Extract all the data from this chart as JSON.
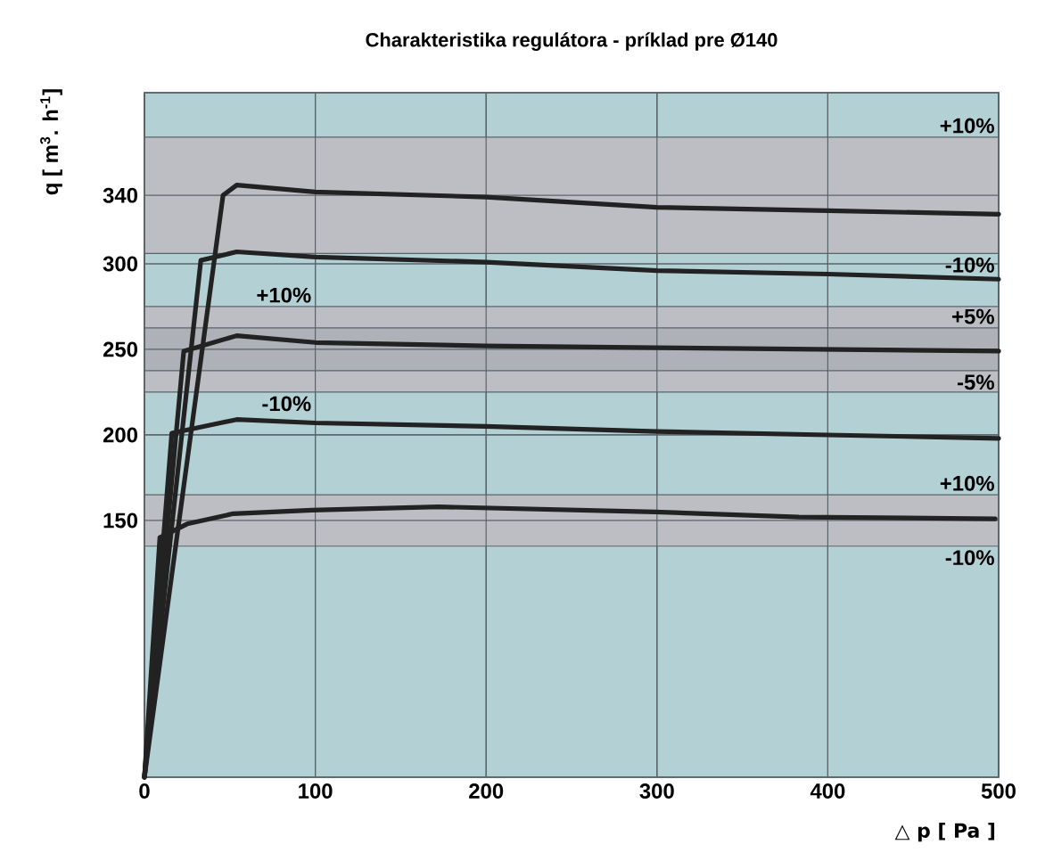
{
  "chart_data": {
    "type": "line",
    "title": "Charakteristika regulátora - príklad pre Ø140",
    "xlabel": "△ p [ Pa ]",
    "ylabel": "q [ m$^{3}$. h$^{-1}$]",
    "xlim": [
      0,
      500
    ],
    "ylim": [
      0,
      400
    ],
    "xticks": [
      0,
      100,
      200,
      300,
      400,
      500
    ],
    "yticks": [
      150,
      200,
      250,
      300,
      340
    ],
    "grid": true,
    "marker": "none",
    "line_style": "solid",
    "series": [
      {
        "color": "#222222",
        "x": [
          0,
          46,
          54,
          100,
          200,
          300,
          400,
          500
        ],
        "values": [
          0,
          340,
          346,
          342,
          339,
          333,
          331,
          329
        ]
      },
      {
        "color": "#222222",
        "x": [
          0,
          33,
          54,
          100,
          200,
          300,
          400,
          500
        ],
        "values": [
          0,
          302,
          307,
          304,
          301,
          296,
          294,
          291
        ]
      },
      {
        "color": "#222222",
        "x": [
          0,
          23,
          54,
          100,
          200,
          300,
          400,
          500
        ],
        "values": [
          0,
          249,
          258,
          254,
          252,
          251,
          250,
          249
        ]
      },
      {
        "color": "#222222",
        "x": [
          0,
          16,
          54,
          100,
          200,
          300,
          400,
          500
        ],
        "values": [
          0,
          201,
          209,
          207,
          205,
          202,
          200,
          198
        ]
      },
      {
        "color": "#222222",
        "x": [
          0,
          9,
          25,
          52,
          98,
          172,
          299,
          383,
          498
        ],
        "values": [
          0,
          140,
          148,
          154,
          156,
          158,
          155,
          152,
          151
        ]
      }
    ],
    "bands": [
      {
        "axis": "y",
        "from": 306,
        "to": 374,
        "color": "#bcbec4"
      },
      {
        "axis": "y",
        "from": 225,
        "to": 275,
        "color": "#bcbec4"
      },
      {
        "axis": "y",
        "from": 237.5,
        "to": 262.5,
        "color": "#aeb1b8"
      },
      {
        "axis": "y",
        "from": 135,
        "to": 165,
        "color": "#bcbec4"
      }
    ],
    "annotations": [
      {
        "text": "+10%",
        "y": 374
      },
      {
        "text": "-10%",
        "y": 306
      },
      {
        "text": "+10%",
        "x": 100,
        "y": 275
      },
      {
        "text": "-10%",
        "x": 100,
        "y": 225
      },
      {
        "text": "+5%",
        "y": 262.5
      },
      {
        "text": "-5%",
        "y": 237.5
      },
      {
        "text": "+10%",
        "y": 165
      },
      {
        "text": "-10%",
        "y": 135
      }
    ]
  }
}
